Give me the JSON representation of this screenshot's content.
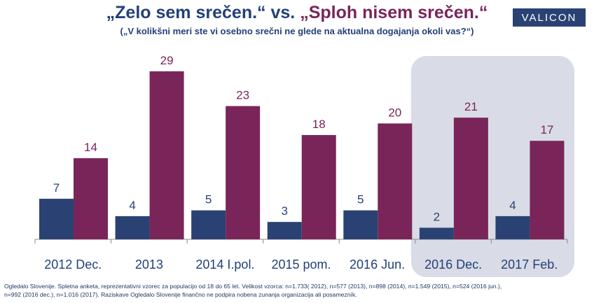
{
  "header": {
    "title_part1": "„Zelo sem srečen.“",
    "title_vs": " vs. ",
    "title_part2": "„Sploh nisem srečen.“",
    "subtitle": "(„V kolikšni meri ste vi osebno srečni ne glede na aktualna dogajanja okoli vas?“)",
    "logo": "VALICON"
  },
  "colors": {
    "series_1": "#2a4273",
    "series_2": "#7a2559",
    "highlight_bg": "#d9dce6",
    "axis": "#8c8c8c"
  },
  "chart_data": {
    "type": "bar",
    "title": "„Zelo sem srečen.“ vs. „Sploh nisem srečen.“",
    "subtitle": "(„V kolikšni meri ste vi osebno srečni ne glede na aktualna dogajanja okoli vas?“)",
    "categories": [
      "2012 Dec.",
      "2013",
      "2014 I.pol.",
      "2015 pom.",
      "2016 Jun.",
      "2016 Dec.",
      "2017 Feb."
    ],
    "series": [
      {
        "values": [
          7,
          4,
          5,
          3,
          5,
          2,
          4
        ]
      },
      {
        "values": [
          14,
          29,
          23,
          18,
          20,
          21,
          17
        ]
      }
    ],
    "highlighted_categories": [
      "2016 Dec.",
      "2017 Feb."
    ],
    "ylim": [
      0,
      32
    ],
    "data_labels": true,
    "grid": false,
    "legend": "none"
  },
  "footnote": {
    "line1": "Ogledalo Slovenije. Spletna anketa, reprezentativni vzorec za populacijo od 18 do 65 let. Velikost vzorca: n=1.733( 2012), n=577 (2013), n=898 (2014), n=1.549 (2015), n=524 (2016 jun.),",
    "line2": "n=992 (2016 dec.), n=1.016 (2017). Raziskave Ogledalo Slovenije finančno ne podpira nobena zunanja organizacija ali posamezník."
  }
}
